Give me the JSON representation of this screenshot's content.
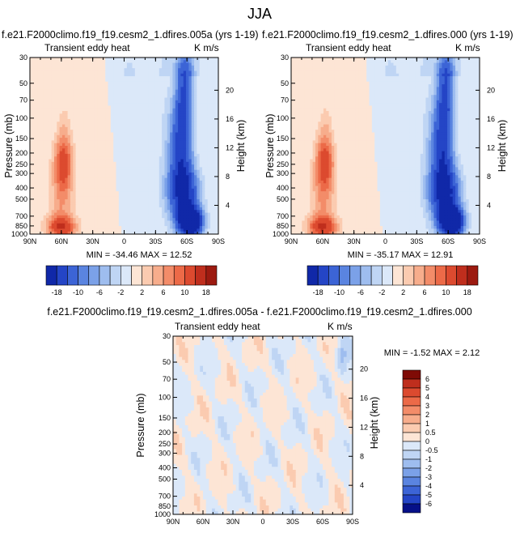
{
  "figure": {
    "title": "JJA",
    "colors": {
      "warm": [
        "#fde5d5",
        "#fbcbb0",
        "#f7ad8c",
        "#f38c69",
        "#ec6a48",
        "#dc4a2f",
        "#bf2e1d",
        "#9c1a10",
        "#7f0b06"
      ],
      "cool": [
        "#dbe8f9",
        "#bfd5f4",
        "#9ebdef",
        "#7ba1e8",
        "#5a84e0",
        "#3c64d6",
        "#2445c6",
        "#1028a8",
        "#061088"
      ]
    }
  },
  "chart_data": [
    {
      "type": "heatmap",
      "title": "f.e21.F2000climo.f19_f19.cesm2_1.dfires.005a (yrs 1-19)",
      "subtitle": "Transient eddy heat",
      "units": "K m/s",
      "xlabel": "",
      "ylabel": "Pressure (mb)",
      "ylabel_right": "Height (km)",
      "x_ticks": [
        "90N",
        "60N",
        "30N",
        "0",
        "30S",
        "60S",
        "90S"
      ],
      "y_ticks": [
        "30",
        "50",
        "70",
        "100",
        "150",
        "200",
        "250",
        "300",
        "400",
        "500",
        "700",
        "850",
        "1000"
      ],
      "height_ticks": [
        "4",
        "8",
        "12",
        "16",
        "20"
      ],
      "stats": "MIN = -34.46   MAX =  12.52",
      "min": -34.46,
      "max": 12.52,
      "colorbar_labels": [
        "-18",
        "-10",
        "-6",
        "-2",
        "2",
        "6",
        "10",
        "18"
      ]
    },
    {
      "type": "heatmap",
      "title": "f.e21.F2000climo.f19_f19.cesm2_1.dfires.000 (yrs 1-19)",
      "subtitle": "Transient eddy heat",
      "units": "K m/s",
      "xlabel": "",
      "ylabel": "Pressure (mb)",
      "ylabel_right": "Height (km)",
      "x_ticks": [
        "90N",
        "60N",
        "30N",
        "0",
        "30S",
        "60S",
        "90S"
      ],
      "y_ticks": [
        "30",
        "50",
        "70",
        "100",
        "150",
        "200",
        "250",
        "300",
        "400",
        "500",
        "700",
        "850",
        "1000"
      ],
      "height_ticks": [
        "4",
        "8",
        "12",
        "16",
        "20"
      ],
      "stats": "MIN = -35.17   MAX =  12.91",
      "min": -35.17,
      "max": 12.91,
      "colorbar_labels": [
        "-18",
        "-10",
        "-6",
        "-2",
        "2",
        "6",
        "10",
        "18"
      ]
    },
    {
      "type": "heatmap",
      "title": "f.e21.F2000climo.f19_f19.cesm2_1.dfires.005a - f.e21.F2000climo.f19_f19.cesm2_1.dfires.000",
      "subtitle": "Transient eddy heat",
      "units": "K m/s",
      "xlabel": "",
      "ylabel": "Pressure (mb)",
      "ylabel_right": "Height (km)",
      "x_ticks": [
        "90N",
        "60N",
        "30N",
        "0",
        "30S",
        "60S",
        "90S"
      ],
      "y_ticks": [
        "30",
        "50",
        "70",
        "100",
        "150",
        "200",
        "250",
        "300",
        "400",
        "500",
        "700",
        "850",
        "1000"
      ],
      "height_ticks": [
        "4",
        "8",
        "12",
        "16",
        "20"
      ],
      "stats": "MIN = -1.52   MAX =  2.12",
      "min": -1.52,
      "max": 2.12,
      "colorbar_labels": [
        "6",
        "5",
        "4",
        "3",
        "2",
        "1",
        "0.5",
        "0",
        "-0.5",
        "-1",
        "-2",
        "-3",
        "-4",
        "-5",
        "-6"
      ]
    }
  ]
}
